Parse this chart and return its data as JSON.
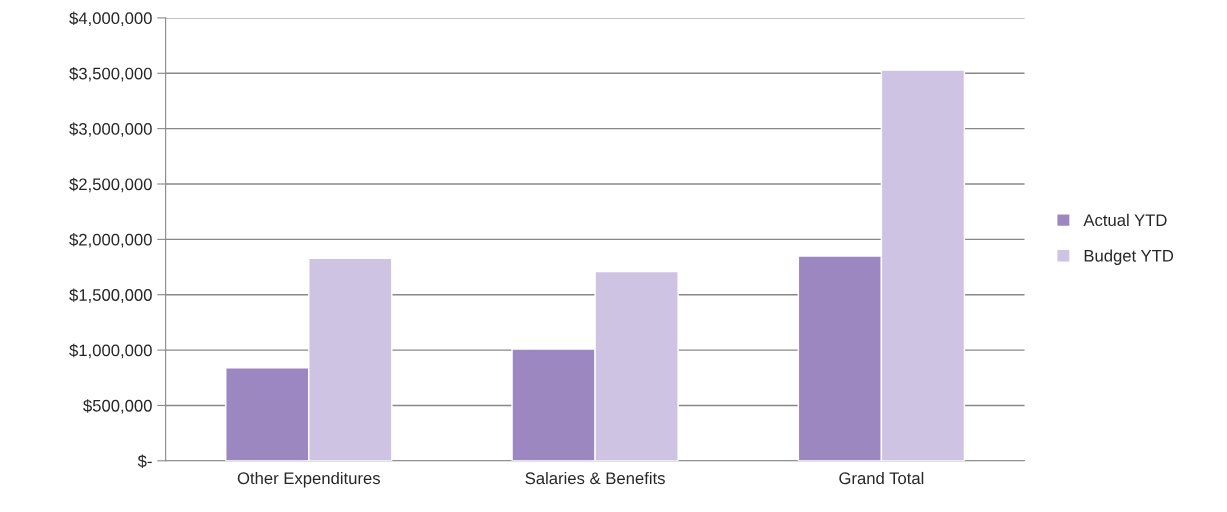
{
  "chart_data": {
    "type": "bar",
    "categories": [
      "Other Expenditures",
      "Salaries & Benefits",
      "Grand Total"
    ],
    "series": [
      {
        "name": "Actual YTD",
        "color": "#9d87c0",
        "values": [
          840000,
          1010000,
          1850000
        ]
      },
      {
        "name": "Budget YTD",
        "color": "#cfc3e4",
        "values": [
          1830000,
          1710000,
          3530000
        ]
      }
    ],
    "ylim": [
      0,
      4000000
    ],
    "yticks": [
      {
        "value": 0,
        "label": "$-"
      },
      {
        "value": 500000,
        "label": "$500,000"
      },
      {
        "value": 1000000,
        "label": "$1,000,000"
      },
      {
        "value": 1500000,
        "label": "$1,500,000"
      },
      {
        "value": 2000000,
        "label": "$2,000,000"
      },
      {
        "value": 2500000,
        "label": "$2,500,000"
      },
      {
        "value": 3000000,
        "label": "$3,000,000"
      },
      {
        "value": 3500000,
        "label": "$3,500,000"
      },
      {
        "value": 4000000,
        "label": "$4,000,000"
      }
    ],
    "grid": "y",
    "legend": "right"
  }
}
